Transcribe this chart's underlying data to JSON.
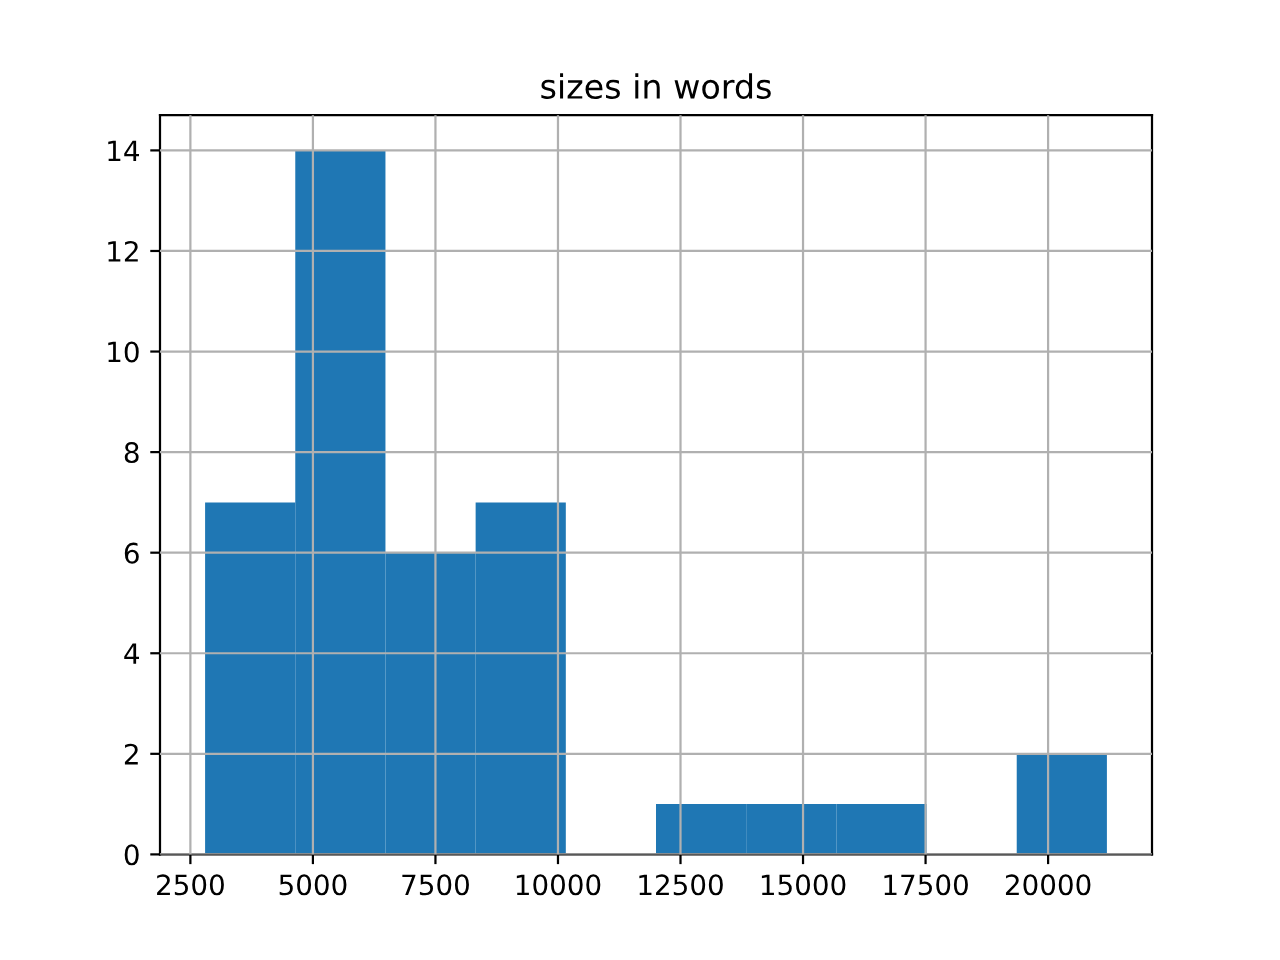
{
  "chart_data": {
    "type": "histogram",
    "title": "sizes in words",
    "bins": [
      2800,
      4640,
      6480,
      8320,
      10160,
      12000,
      13840,
      15680,
      17520,
      19360,
      21200
    ],
    "values": [
      7,
      14,
      6,
      7,
      0,
      1,
      1,
      1,
      0,
      2
    ],
    "color": "#1f77b4",
    "xlim": [
      1880,
      22120
    ],
    "xticks": [
      2500,
      5000,
      7500,
      10000,
      12500,
      15000,
      17500,
      20000
    ],
    "ylim": [
      0,
      14.7
    ],
    "yticks": [
      0,
      2,
      4,
      6,
      8,
      10,
      12,
      14
    ],
    "grid": true
  }
}
